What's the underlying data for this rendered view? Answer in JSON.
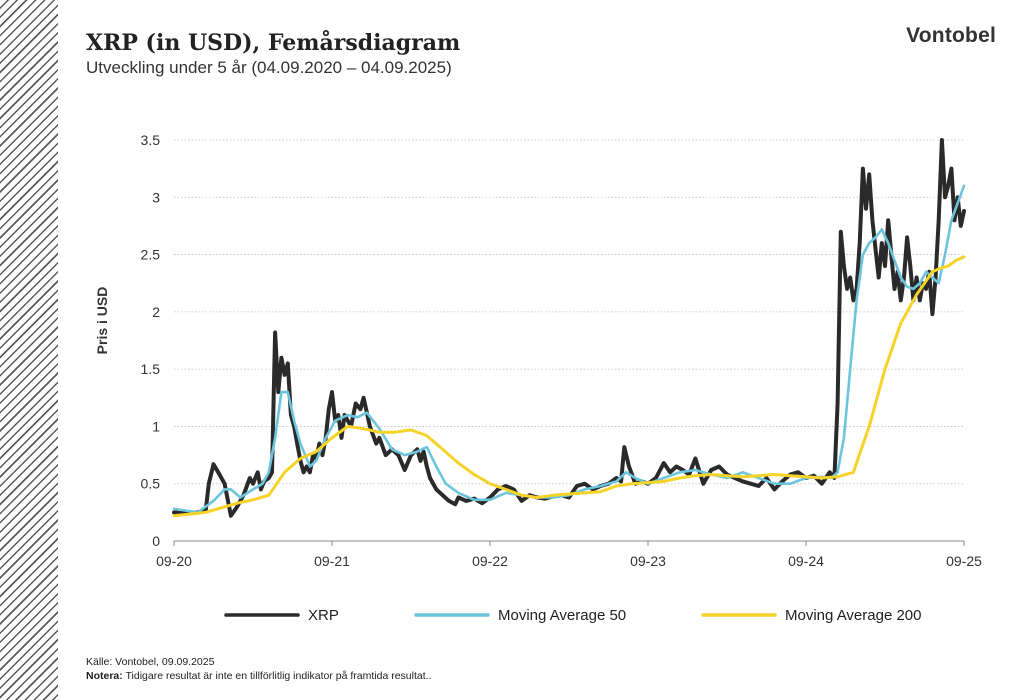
{
  "header": {
    "title": "XRP (in USD), Femårsdiagram",
    "subtitle": "Utveckling under 5 år (04.09.2020 – 04.09.2025)",
    "brand": "Vontobel"
  },
  "footer": {
    "source": "Källe: Vontobel, 09.09.2025",
    "note_label": "Notera:",
    "note_text": " Tidigare resultat är inte en tillförlitlig indikator på framtida resultat.."
  },
  "colors": {
    "xrp": "#2a2a2a",
    "ma50": "#6cc5dc",
    "ma200": "#f5d328",
    "grid": "#bdbdbd"
  },
  "chart_data": {
    "type": "line",
    "ylabel": "Pris i USD",
    "ylim": [
      0,
      3.5
    ],
    "yticks": [
      0,
      0.5,
      1,
      1.5,
      2,
      2.5,
      3,
      3.5
    ],
    "ytick_labels": [
      "0",
      "0.5",
      "1",
      "1.5",
      "2",
      "2.5",
      "3",
      "3.5"
    ],
    "xlim": [
      0,
      5
    ],
    "xticks": [
      0,
      1,
      2,
      3,
      4,
      5
    ],
    "xtick_labels": [
      "09-20",
      "09-21",
      "09-22",
      "09-23",
      "09-24",
      "09-25"
    ],
    "grid": "horizontal dotted",
    "legend_position": "bottom",
    "series": [
      {
        "name": "XRP",
        "color": "#2a2a2a",
        "x": [
          0,
          0.1,
          0.2,
          0.22,
          0.25,
          0.28,
          0.32,
          0.36,
          0.4,
          0.44,
          0.48,
          0.5,
          0.53,
          0.55,
          0.57,
          0.6,
          0.62,
          0.64,
          0.66,
          0.68,
          0.7,
          0.72,
          0.74,
          0.76,
          0.78,
          0.8,
          0.82,
          0.84,
          0.86,
          0.88,
          0.9,
          0.92,
          0.94,
          0.96,
          0.98,
          1.0,
          1.02,
          1.04,
          1.06,
          1.08,
          1.1,
          1.12,
          1.15,
          1.18,
          1.2,
          1.24,
          1.28,
          1.3,
          1.34,
          1.38,
          1.42,
          1.46,
          1.5,
          1.54,
          1.56,
          1.58,
          1.6,
          1.62,
          1.66,
          1.7,
          1.74,
          1.78,
          1.8,
          1.85,
          1.9,
          1.95,
          2.0,
          2.05,
          2.1,
          2.15,
          2.2,
          2.25,
          2.3,
          2.35,
          2.4,
          2.45,
          2.5,
          2.55,
          2.6,
          2.65,
          2.7,
          2.75,
          2.8,
          2.83,
          2.85,
          2.88,
          2.92,
          2.96,
          3.0,
          3.05,
          3.1,
          3.14,
          3.18,
          3.22,
          3.26,
          3.3,
          3.35,
          3.4,
          3.45,
          3.5,
          3.55,
          3.6,
          3.65,
          3.7,
          3.75,
          3.8,
          3.85,
          3.9,
          3.95,
          4.0,
          4.05,
          4.1,
          4.15,
          4.18,
          4.2,
          4.22,
          4.24,
          4.26,
          4.28,
          4.3,
          4.32,
          4.34,
          4.36,
          4.38,
          4.4,
          4.42,
          4.44,
          4.46,
          4.48,
          4.5,
          4.52,
          4.54,
          4.56,
          4.58,
          4.6,
          4.62,
          4.64,
          4.66,
          4.68,
          4.7,
          4.72,
          4.74,
          4.76,
          4.78,
          4.8,
          4.82,
          4.84,
          4.86,
          4.88,
          4.9,
          4.92,
          4.94,
          4.96,
          4.98,
          5.0
        ],
        "y": [
          0.25,
          0.24,
          0.26,
          0.5,
          0.67,
          0.6,
          0.5,
          0.22,
          0.3,
          0.4,
          0.55,
          0.5,
          0.6,
          0.45,
          0.52,
          0.55,
          0.6,
          1.82,
          1.3,
          1.6,
          1.45,
          1.55,
          1.1,
          1.0,
          0.85,
          0.7,
          0.6,
          0.65,
          0.6,
          0.75,
          0.72,
          0.85,
          0.75,
          0.9,
          1.15,
          1.3,
          1.05,
          1.1,
          0.9,
          1.1,
          1.05,
          1.0,
          1.2,
          1.15,
          1.25,
          1.0,
          0.85,
          0.9,
          0.75,
          0.8,
          0.75,
          0.62,
          0.75,
          0.8,
          0.7,
          0.78,
          0.65,
          0.55,
          0.45,
          0.4,
          0.35,
          0.32,
          0.38,
          0.35,
          0.37,
          0.33,
          0.38,
          0.45,
          0.48,
          0.45,
          0.35,
          0.4,
          0.38,
          0.37,
          0.39,
          0.4,
          0.38,
          0.48,
          0.5,
          0.45,
          0.48,
          0.5,
          0.55,
          0.52,
          0.82,
          0.65,
          0.5,
          0.52,
          0.5,
          0.55,
          0.68,
          0.6,
          0.65,
          0.62,
          0.58,
          0.72,
          0.5,
          0.62,
          0.65,
          0.58,
          0.55,
          0.52,
          0.5,
          0.48,
          0.55,
          0.45,
          0.52,
          0.58,
          0.6,
          0.55,
          0.57,
          0.5,
          0.6,
          0.55,
          1.2,
          2.7,
          2.4,
          2.2,
          2.3,
          2.1,
          2.2,
          2.6,
          3.25,
          2.9,
          3.2,
          2.8,
          2.55,
          2.3,
          2.6,
          2.4,
          2.8,
          2.5,
          2.2,
          2.35,
          2.1,
          2.3,
          2.65,
          2.4,
          2.1,
          2.3,
          2.1,
          2.25,
          2.2,
          2.35,
          1.98,
          2.3,
          2.8,
          3.5,
          3.0,
          3.1,
          3.25,
          2.8,
          3.0,
          2.75,
          2.88
        ],
        "width": 4
      },
      {
        "name": "Moving Average 50",
        "color": "#6cc5dc",
        "x": [
          0,
          0.15,
          0.25,
          0.32,
          0.36,
          0.42,
          0.5,
          0.56,
          0.6,
          0.64,
          0.68,
          0.72,
          0.76,
          0.8,
          0.86,
          0.9,
          0.96,
          1.02,
          1.1,
          1.16,
          1.22,
          1.3,
          1.38,
          1.46,
          1.54,
          1.6,
          1.66,
          1.72,
          1.8,
          1.9,
          2.0,
          2.1,
          2.2,
          2.3,
          2.4,
          2.5,
          2.6,
          2.7,
          2.8,
          2.86,
          2.92,
          3.0,
          3.1,
          3.2,
          3.3,
          3.4,
          3.5,
          3.6,
          3.7,
          3.8,
          3.9,
          4.0,
          4.1,
          4.16,
          4.2,
          4.24,
          4.28,
          4.32,
          4.36,
          4.4,
          4.44,
          4.48,
          4.52,
          4.56,
          4.6,
          4.64,
          4.68,
          4.72,
          4.76,
          4.8,
          4.84,
          4.88,
          4.92,
          4.96,
          5.0
        ],
        "y": [
          0.28,
          0.25,
          0.35,
          0.45,
          0.45,
          0.38,
          0.45,
          0.5,
          0.6,
          0.9,
          1.3,
          1.3,
          1.05,
          0.85,
          0.65,
          0.7,
          0.9,
          1.05,
          1.1,
          1.08,
          1.12,
          0.98,
          0.8,
          0.75,
          0.78,
          0.82,
          0.65,
          0.5,
          0.42,
          0.36,
          0.36,
          0.42,
          0.4,
          0.38,
          0.38,
          0.4,
          0.45,
          0.48,
          0.52,
          0.6,
          0.55,
          0.5,
          0.55,
          0.6,
          0.62,
          0.58,
          0.55,
          0.6,
          0.55,
          0.5,
          0.5,
          0.55,
          0.56,
          0.55,
          0.6,
          0.9,
          1.5,
          2.1,
          2.5,
          2.6,
          2.65,
          2.72,
          2.6,
          2.45,
          2.3,
          2.22,
          2.2,
          2.25,
          2.35,
          2.3,
          2.25,
          2.5,
          2.8,
          2.95,
          3.1
        ],
        "width": 2.6
      },
      {
        "name": "Moving Average 200",
        "color": "#f5d328",
        "x": [
          0,
          0.2,
          0.4,
          0.5,
          0.6,
          0.7,
          0.8,
          0.9,
          1.0,
          1.1,
          1.2,
          1.3,
          1.4,
          1.5,
          1.6,
          1.7,
          1.8,
          1.9,
          2.0,
          2.1,
          2.2,
          2.3,
          2.4,
          2.5,
          2.6,
          2.7,
          2.8,
          2.9,
          3.0,
          3.1,
          3.2,
          3.3,
          3.4,
          3.5,
          3.6,
          3.7,
          3.8,
          3.9,
          4.0,
          4.1,
          4.2,
          4.3,
          4.4,
          4.5,
          4.6,
          4.7,
          4.8,
          4.85,
          4.9,
          4.95,
          5.0
        ],
        "y": [
          0.22,
          0.25,
          0.33,
          0.36,
          0.4,
          0.6,
          0.72,
          0.78,
          0.9,
          1.0,
          0.98,
          0.95,
          0.95,
          0.97,
          0.92,
          0.8,
          0.68,
          0.58,
          0.5,
          0.45,
          0.4,
          0.38,
          0.4,
          0.41,
          0.42,
          0.43,
          0.48,
          0.5,
          0.51,
          0.52,
          0.55,
          0.57,
          0.58,
          0.57,
          0.56,
          0.57,
          0.58,
          0.57,
          0.56,
          0.55,
          0.56,
          0.6,
          1.0,
          1.5,
          1.9,
          2.15,
          2.35,
          2.38,
          2.4,
          2.45,
          2.48
        ],
        "width": 3
      }
    ]
  }
}
